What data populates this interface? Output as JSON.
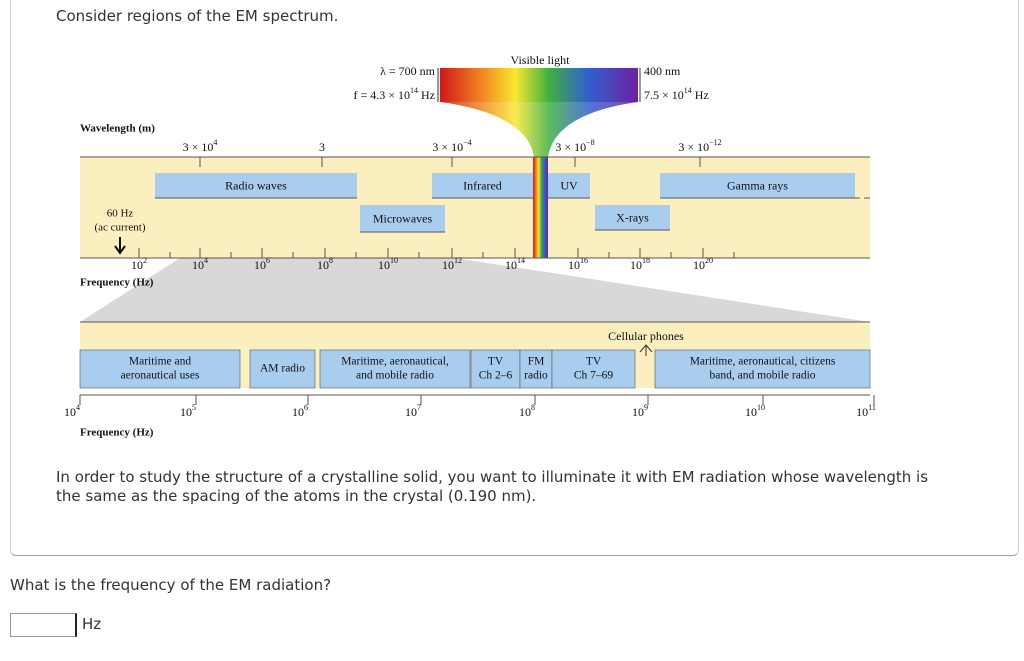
{
  "intro": "Consider regions of the EM spectrum.",
  "figure": {
    "visible_light": "Visible light",
    "left_wavelength": "λ = 700 nm",
    "left_frequency": {
      "base": "f = 4.3 × 10",
      "exp": "14",
      "unit": " Hz"
    },
    "right_wavelength": "400 nm",
    "right_frequency": {
      "base": "7.5 × 10",
      "exp": "14",
      "unit": " Hz"
    },
    "wavelength_title": "Wavelength (m)",
    "wavelength_ticks": [
      {
        "base": "3 × 10",
        "exp": "4"
      },
      {
        "base": "3"
      },
      {
        "base": "3 × 10",
        "exp": "−4"
      },
      {
        "base": "3 × 10",
        "exp": "−8"
      },
      {
        "base": "3 × 10",
        "exp": "−12"
      }
    ],
    "bands": [
      "Radio waves",
      "Infrared",
      "UV",
      "Gamma rays",
      "Microwaves",
      "X-rays"
    ],
    "ac_label": [
      "60 Hz",
      "(ac current)"
    ],
    "frequency_ticks": [
      {
        "base": "10",
        "exp": "2"
      },
      {
        "base": "10",
        "exp": "4"
      },
      {
        "base": "10",
        "exp": "6"
      },
      {
        "base": "10",
        "exp": "8"
      },
      {
        "base": "10",
        "exp": "10"
      },
      {
        "base": "10",
        "exp": "12"
      },
      {
        "base": "10",
        "exp": "14"
      },
      {
        "base": "10",
        "exp": "16"
      },
      {
        "base": "10",
        "exp": "18"
      },
      {
        "base": "10",
        "exp": "20"
      }
    ],
    "frequency_title": "Frequency (Hz)",
    "cellular": "Cellular phones",
    "lower_bands": [
      [
        "Maritime and",
        "aeronautical uses"
      ],
      [
        "AM radio"
      ],
      [
        "Maritime, aeronautical,",
        "and mobile radio"
      ],
      [
        "TV",
        "Ch 2–6"
      ],
      [
        "FM",
        "radio"
      ],
      [
        "TV",
        "Ch 7–69"
      ],
      [
        "Maritime, aeronautical, citizens",
        "band, and mobile radio"
      ]
    ],
    "lower_ticks": [
      {
        "base": "10",
        "exp": "4"
      },
      {
        "base": "10",
        "exp": "5"
      },
      {
        "base": "10",
        "exp": "6"
      },
      {
        "base": "10",
        "exp": "7"
      },
      {
        "base": "10",
        "exp": "8"
      },
      {
        "base": "10",
        "exp": "9"
      },
      {
        "base": "10",
        "exp": "10"
      },
      {
        "base": "10",
        "exp": "11"
      }
    ],
    "lower_frequency_title": "Frequency (Hz)"
  },
  "paragraph": "In order to study the structure of a crystalline solid, you want to illuminate it with EM radiation whose wavelength is the same as the spacing of the atoms in the crystal (0.190 nm).",
  "question": "What is the frequency of the EM radiation?",
  "answer_unit": "Hz"
}
